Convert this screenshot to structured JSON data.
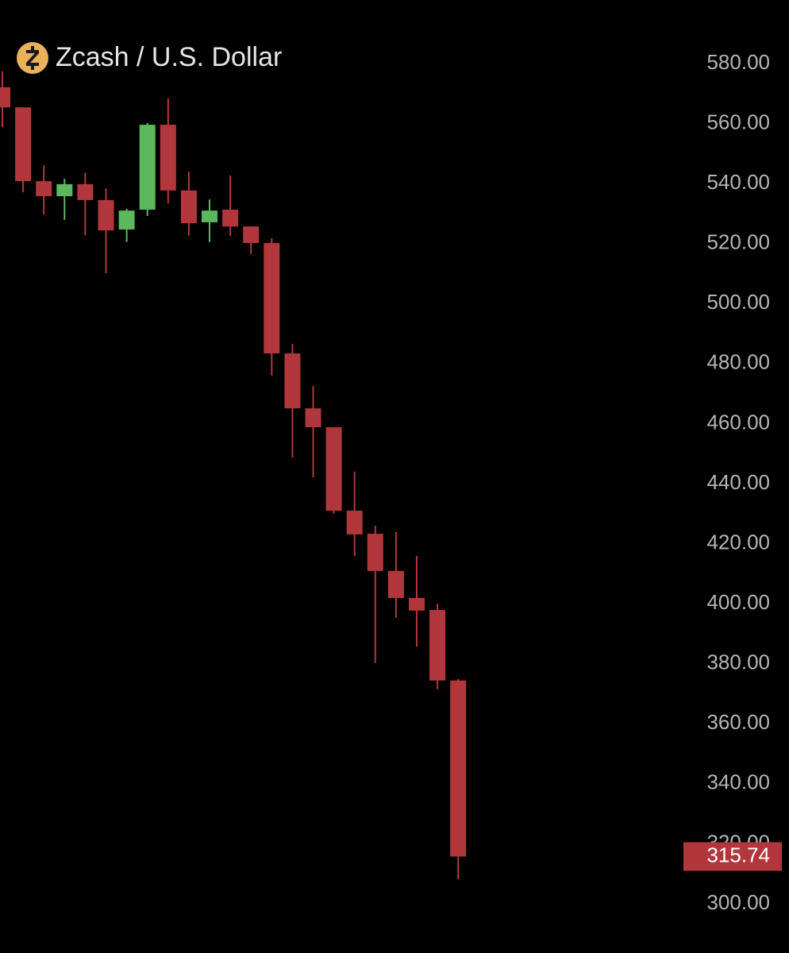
{
  "chart_data": {
    "type": "candlestick",
    "title": "Zcash / U.S. Dollar",
    "open": [
      572.1,
      565.4,
      540.8,
      535.8,
      539.8,
      534.5,
      524.7,
      531.3,
      559.6,
      537.7,
      527.1,
      531.3,
      525.7,
      520.2,
      483.4,
      465.1,
      458.8,
      431.0,
      423.3,
      410.9,
      401.9,
      397.9,
      374.4
    ],
    "high": [
      577.4,
      565.4,
      546.1,
      541.6,
      543.5,
      538.4,
      531.6,
      560.2,
      568.4,
      544.0,
      534.7,
      542.7,
      525.7,
      521.8,
      486.6,
      472.6,
      458.8,
      444.0,
      426.0,
      423.9,
      415.9,
      400.0,
      374.9
    ],
    "low": [
      558.8,
      537.1,
      529.7,
      527.9,
      522.8,
      510.1,
      520.5,
      529.2,
      533.4,
      522.6,
      520.5,
      522.6,
      516.5,
      476.0,
      448.7,
      442.1,
      430.0,
      415.9,
      380.2,
      395.3,
      385.7,
      371.5,
      308.2
    ],
    "close": [
      565.4,
      540.8,
      535.8,
      539.8,
      534.5,
      524.4,
      531.0,
      559.6,
      537.7,
      526.8,
      531.0,
      525.7,
      520.2,
      483.4,
      465.1,
      458.8,
      431.0,
      423.1,
      410.9,
      401.9,
      397.7,
      374.4,
      315.74
    ],
    "up_color": "#5cb85c",
    "down_color": "#b2373d",
    "ylim": [
      300,
      580
    ],
    "yticks": [
      {
        "value": 300,
        "label": "300.00"
      },
      {
        "value": 320,
        "label": "320.00"
      },
      {
        "value": 340,
        "label": "340.00"
      },
      {
        "value": 360,
        "label": "360.00"
      },
      {
        "value": 380,
        "label": "380.00"
      },
      {
        "value": 400,
        "label": "400.00"
      },
      {
        "value": 420,
        "label": "420.00"
      },
      {
        "value": 440,
        "label": "440.00"
      },
      {
        "value": 460,
        "label": "460.00"
      },
      {
        "value": 480,
        "label": "480.00"
      },
      {
        "value": 500,
        "label": "500.00"
      },
      {
        "value": 520,
        "label": "520.00"
      },
      {
        "value": 540,
        "label": "540.00"
      },
      {
        "value": 560,
        "label": "560.00"
      },
      {
        "value": 580,
        "label": "580.00"
      }
    ]
  }
}
